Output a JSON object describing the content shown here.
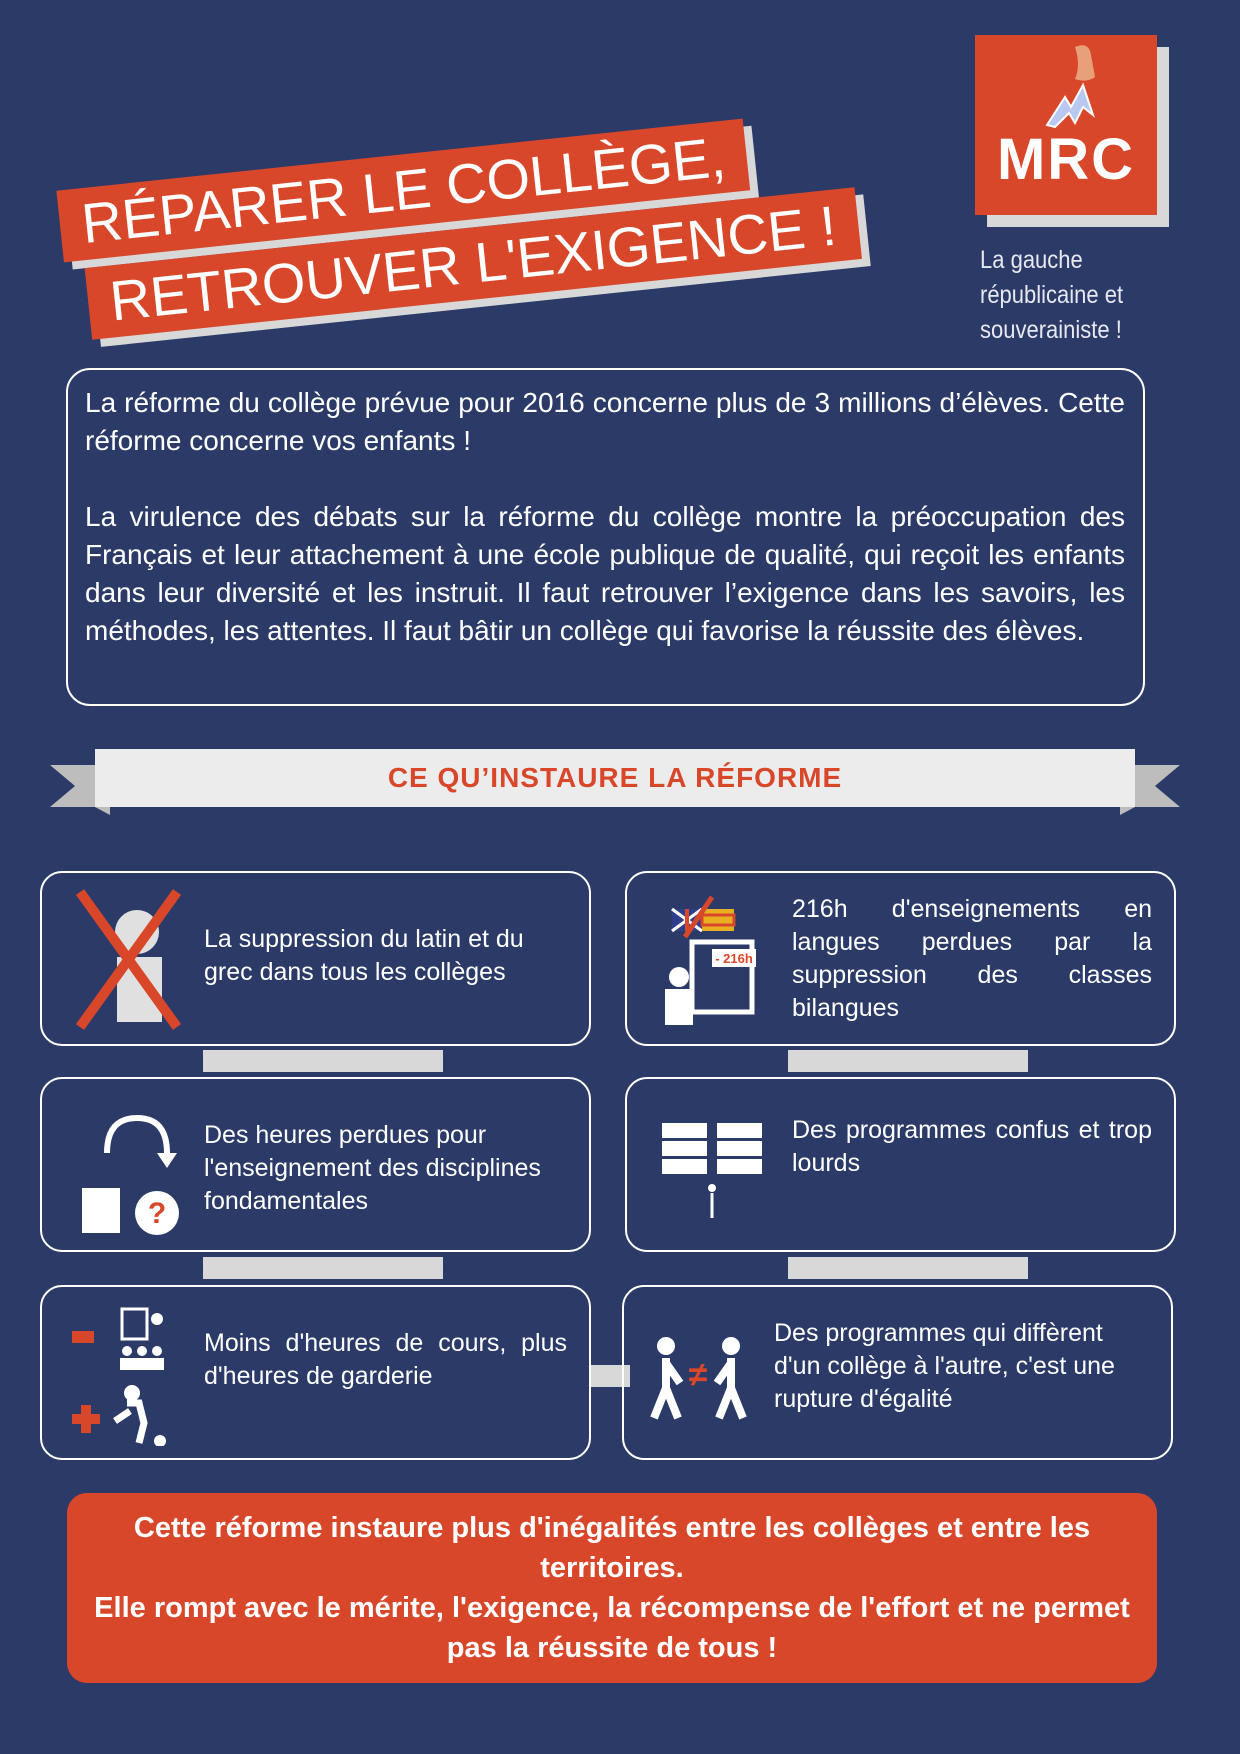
{
  "header": {
    "title_line1": "RÉPARER LE COLLÈGE,",
    "title_line2": "RETROUVER L'EXIGENCE !"
  },
  "logo": {
    "text": "MRC",
    "tagline_lines": [
      "La gauche",
      "républicaine et",
      "souverainiste !"
    ]
  },
  "intro": {
    "paragraph1": "La réforme du collège prévue pour 2016 concerne plus de 3 millions d’élèves. Cette réforme concerne vos enfants  !",
    "paragraph2": "La virulence des débats sur la réforme du collège montre la préoccupation des Français et leur attachement à une école publique de qualité, qui reçoit les enfants dans leur diversité et les instruit. Il faut retrouver l’exigence dans les savoirs, les méthodes, les attentes. Il faut bâtir un collège qui favorise  la réussite des élèves."
  },
  "section": {
    "title": "CE QU’INSTAURE LA RÉFORME"
  },
  "cards": [
    {
      "text": "La suppression du latin et du grec dans tous les collèges",
      "icon": "crossed-out-latin-greek-icon"
    },
    {
      "text": "216h d'enseignements en langues perdues par la suppression des classes bilangues",
      "icon": "language-class-icon",
      "badge": "- 216h"
    },
    {
      "text": "Des heures perdues pour l'enseignement des disciplines fondamentales",
      "icon": "lost-hours-icon"
    },
    {
      "text": "Des programmes confus et trop lourds",
      "icon": "heavy-books-icon"
    },
    {
      "text": "Moins d'heures de cours, plus d'heures de garderie",
      "icon": "class-vs-daycare-icon"
    },
    {
      "text": "Des programmes qui diffèrent d'un collège à l'autre, c'est une rupture d'égalité",
      "icon": "unequal-students-icon",
      "symbol": "≠"
    }
  ],
  "closing": {
    "line1": "Cette réforme instaure plus d'inégalités entre les collèges et entre les territoires.",
    "line2": "Elle rompt avec le mérite, l'exigence, la récompense de l'effort et ne permet pas la réussite de tous !"
  },
  "colors": {
    "background": "#2c3a68",
    "accent": "#d9472b",
    "ribbon": "#ececec"
  }
}
